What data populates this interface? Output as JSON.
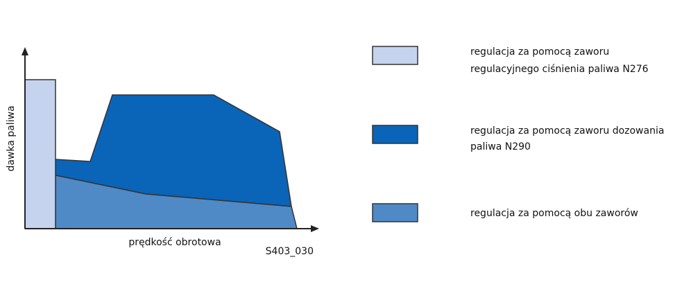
{
  "diagram": {
    "y_axis_label": "dawka paliwa",
    "x_axis_label": "prędkość obrotowa",
    "figure_id": "S403_030",
    "legend": [
      {
        "lines": [
          "regulacja za pomocą zaworu",
          "regulacyjnego ciśnienia paliwa N276"
        ]
      },
      {
        "lines": [
          "regulacja za pomocą zaworu dozowania",
          "paliwa N290"
        ]
      },
      {
        "lines": [
          "regulacja za pomocą obu zaworów"
        ]
      }
    ]
  }
}
